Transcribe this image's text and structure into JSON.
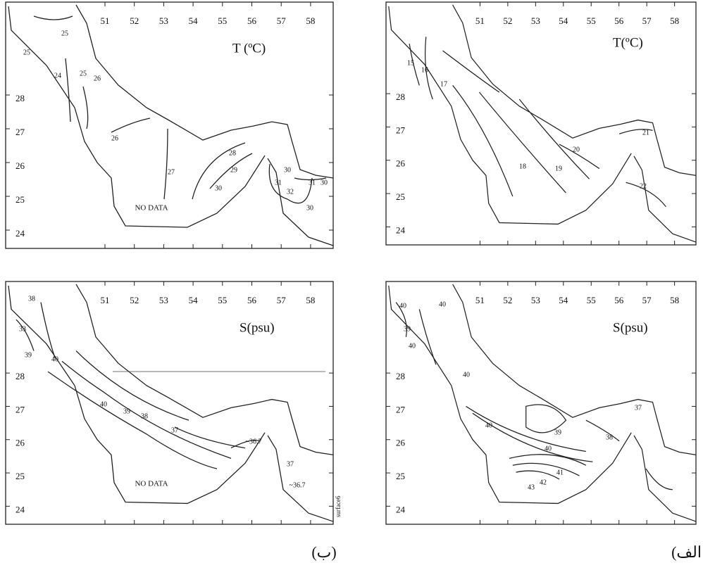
{
  "lon_ticks": [
    "51",
    "52",
    "53",
    "54",
    "55",
    "56",
    "57",
    "58"
  ],
  "lat_ticks": [
    "28",
    "27",
    "26",
    "25",
    "24"
  ],
  "panels": [
    {
      "title": "T (ºC)",
      "note": "NO DATA",
      "contour_labels": [
        "25",
        "25",
        "24",
        "25",
        "26",
        "26",
        "27",
        "28",
        "29",
        "30",
        "30",
        "31",
        "32",
        "30",
        "31",
        "30"
      ]
    },
    {
      "title": "T(ºC)",
      "contour_labels": [
        "15",
        "16",
        "17",
        "18",
        "19",
        "20",
        "21",
        "22"
      ]
    },
    {
      "title": "S(psu)",
      "note": "NO DATA",
      "contour_labels": [
        "38",
        "33",
        "39",
        "40",
        "40",
        "39",
        "38",
        "37",
        "~36.7",
        "37",
        "~36.7"
      ]
    },
    {
      "title": "S(psu)",
      "contour_labels": [
        "40",
        "40",
        "39",
        "40",
        "40",
        "40",
        "39",
        "40",
        "38",
        "37",
        "41",
        "42",
        "43"
      ]
    }
  ],
  "stamp": "surface6",
  "captions": [
    "(ب)",
    "(الف"
  ]
}
